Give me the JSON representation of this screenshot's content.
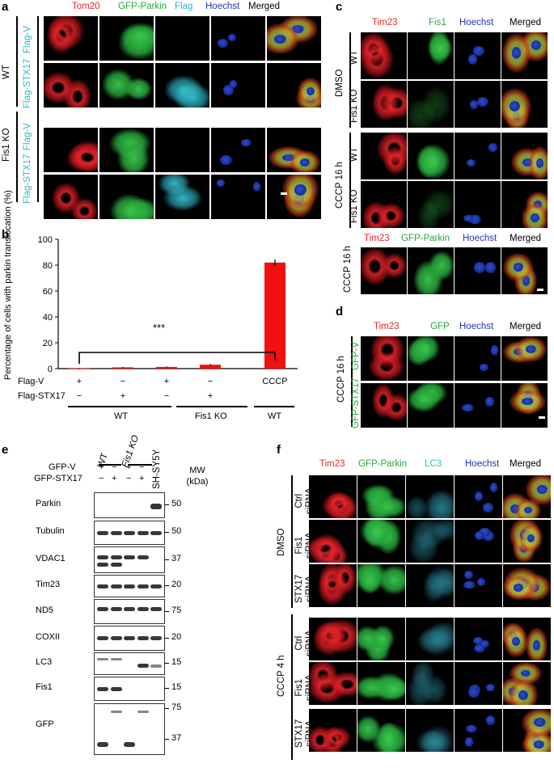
{
  "panel_a": {
    "label": "a",
    "headers": [
      "Tom20",
      "GFP-Parkin",
      "Flag",
      "Hoechst",
      "Merged"
    ],
    "groups": [
      {
        "label": "WT",
        "rows": [
          "Flag-V",
          "Flag-STX17"
        ]
      },
      {
        "label": "Fis1 KO",
        "rows": [
          "Flag-V",
          "Flag-STX17"
        ]
      }
    ]
  },
  "panel_b": {
    "label": "b",
    "ylabel": "Percentage of cells with parkin translocation (%)",
    "significance": "***",
    "row_labels": [
      "Flag-V",
      "Flag-STX17"
    ],
    "conditions": [
      {
        "flag_v": "+",
        "flag_stx17": "−"
      },
      {
        "flag_v": "−",
        "flag_stx17": "+"
      },
      {
        "flag_v": "+",
        "flag_stx17": "−"
      },
      {
        "flag_v": "−",
        "flag_stx17": "+"
      },
      {
        "flag_v": "CCCP",
        "flag_stx17": ""
      }
    ],
    "group_labels": [
      "WT",
      "Fis1 KO",
      "WT"
    ]
  },
  "chart_data": {
    "type": "bar",
    "categories": [
      "WT Flag-V",
      "WT Flag-STX17",
      "Fis1 KO Flag-V",
      "Fis1 KO Flag-STX17",
      "WT CCCP"
    ],
    "values": [
      0.3,
      1.0,
      1.3,
      3.0,
      82
    ],
    "errors": [
      0.2,
      0.3,
      0.4,
      0.6,
      2.5
    ],
    "ylim": [
      0,
      100
    ],
    "yticks": [
      0,
      20,
      40,
      60,
      80,
      100
    ],
    "color": "#f01010"
  },
  "panel_c": {
    "label": "c",
    "headers": [
      "Tim23",
      "Fis1",
      "Hoechst",
      "Merged"
    ],
    "groups": [
      {
        "label": "DMSO",
        "rows": [
          "WT",
          "Fis1 KO"
        ]
      },
      {
        "label": "CCCP 16 h",
        "rows": [
          "WT",
          "Fis1 KO"
        ]
      }
    ],
    "sub_headers": [
      "Tim23",
      "GFP-Parkin",
      "Hoechst",
      "Merged"
    ],
    "sub_label": "CCCP 16 h"
  },
  "panel_d": {
    "label": "d",
    "headers": [
      "Tim23",
      "GFP",
      "Hoechst",
      "Merged"
    ],
    "group_label": "CCCP 16 h",
    "rows": [
      "GFP-V",
      "GFP-STX17"
    ]
  },
  "panel_e": {
    "label": "e",
    "group_labels": [
      "WT",
      "Fis1 KO"
    ],
    "row_labels": [
      "GFP-V",
      "GFP-STX17"
    ],
    "lane_signs": {
      "gfp_v": [
        "+",
        "−",
        "+",
        "−"
      ],
      "gfp_stx17": [
        "−",
        "+",
        "−",
        "+"
      ]
    },
    "extra_lane": "SH-SY5Y",
    "mw_header": "MW (kDa)",
    "blots": [
      {
        "name": "Parkin",
        "mw": [
          "50"
        ]
      },
      {
        "name": "Tubulin",
        "mw": [
          "50"
        ]
      },
      {
        "name": "VDAC1",
        "mw": [
          "37"
        ]
      },
      {
        "name": "Tim23",
        "mw": [
          "20"
        ]
      },
      {
        "name": "ND5",
        "mw": [
          "75"
        ]
      },
      {
        "name": "COXII",
        "mw": [
          "20"
        ]
      },
      {
        "name": "LC3",
        "mw": [
          "15"
        ]
      },
      {
        "name": "Fis1",
        "mw": [
          "15"
        ]
      },
      {
        "name": "GFP",
        "mw": [
          "75",
          "37"
        ]
      }
    ]
  },
  "panel_f": {
    "label": "f",
    "headers": [
      "Tim23",
      "GFP-Parkin",
      "LC3",
      "Hoechst",
      "Merged"
    ],
    "groups": [
      {
        "label": "DMSO",
        "rows": [
          "Ctrl siRNA",
          "Fis1 siRNA",
          "STX17 siRNA"
        ]
      },
      {
        "label": "CCCP 4 h",
        "rows": [
          "Ctrl siRNA",
          "Fis1 siRNA",
          "STX17 siRNA"
        ]
      }
    ]
  },
  "colors": {
    "red": "#e8262b",
    "green": "#27a83a",
    "cyan": "#2fb6c8",
    "blue": "#2136b8",
    "bar": "#f01010"
  }
}
